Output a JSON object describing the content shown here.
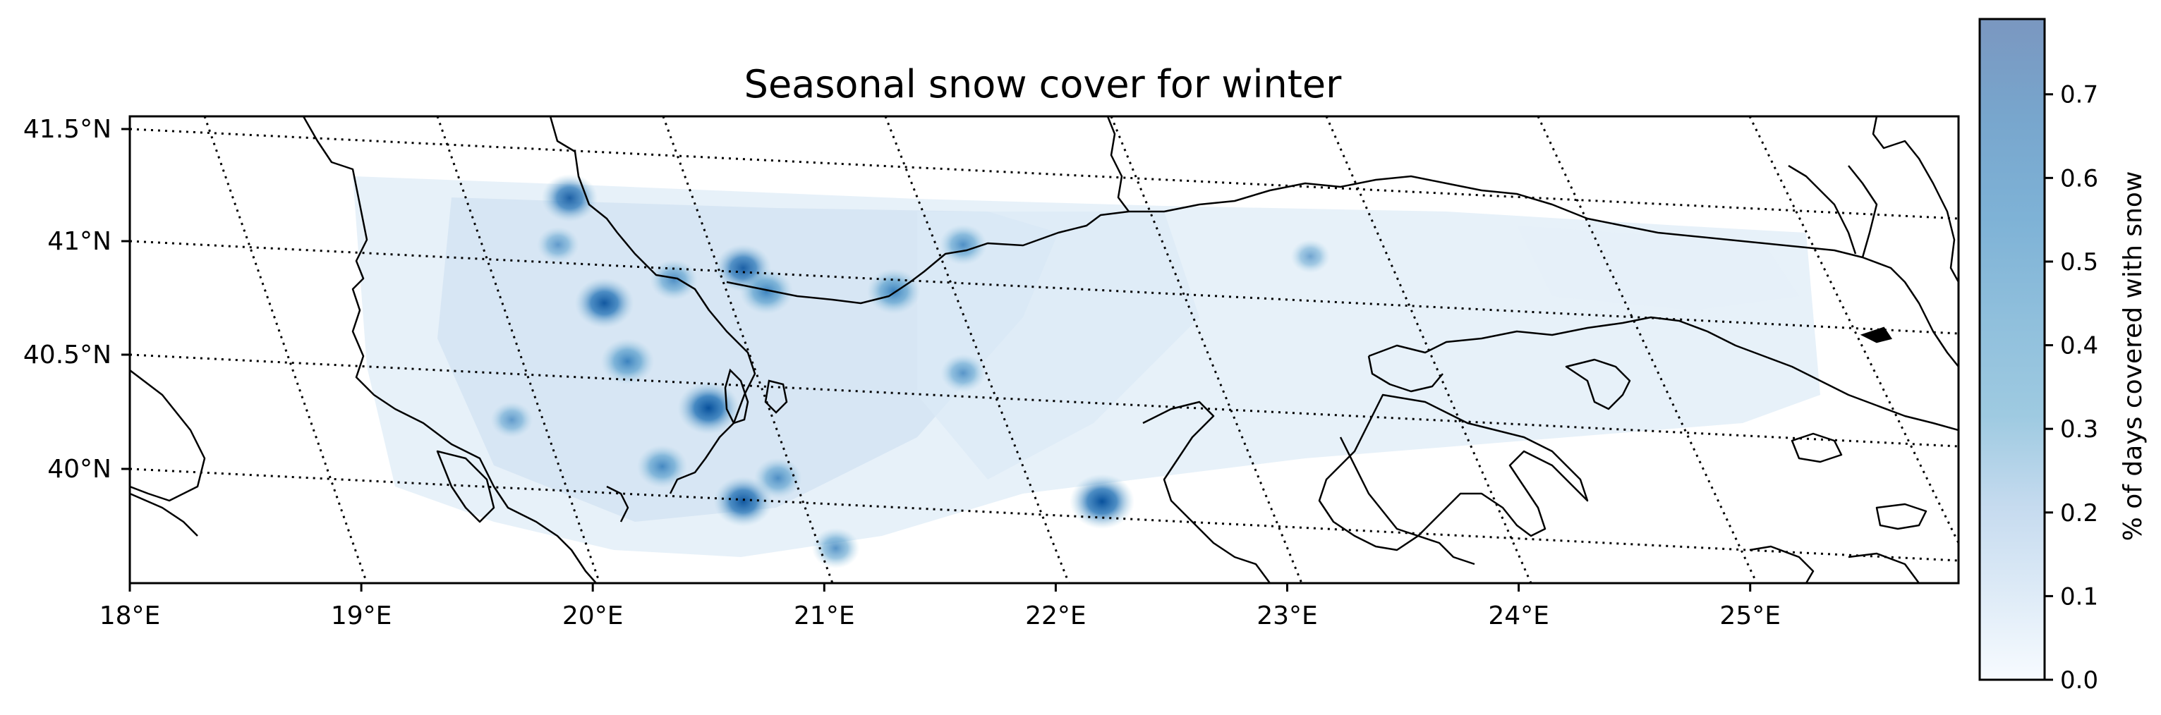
{
  "title": "Seasonal snow cover for winter",
  "colorbar": {
    "label": "% of days covered with snow",
    "ticks": [
      "0.0",
      "0.1",
      "0.2",
      "0.3",
      "0.4",
      "0.5",
      "0.6",
      "0.7"
    ],
    "tick_values": [
      0.0,
      0.1,
      0.2,
      0.3,
      0.4,
      0.5,
      0.6,
      0.7
    ],
    "range": [
      0.0,
      0.79
    ],
    "colormap": [
      "#f7fbff",
      "#deebf7",
      "#c6dbef",
      "#9ecae1",
      "#6baed6",
      "#4292c6",
      "#2171b5",
      "#08519c"
    ]
  },
  "axes": {
    "x_ticks": [
      "18°E",
      "19°E",
      "20°E",
      "21°E",
      "22°E",
      "23°E",
      "24°E",
      "25°E"
    ],
    "x_tick_values": [
      18,
      19,
      20,
      21,
      22,
      23,
      24,
      25
    ],
    "y_ticks": [
      "41.5°N",
      "41°N",
      "40.5°N",
      "40°N"
    ],
    "y_tick_values": [
      41.5,
      41.0,
      40.5,
      40.0
    ],
    "lon_range": [
      18.0,
      25.9
    ],
    "lat_range": [
      39.55,
      41.55
    ],
    "gridlines": "dotted"
  },
  "snow_hotspots": [
    {
      "lon": 19.9,
      "lat": 41.2,
      "value": 0.55
    },
    {
      "lon": 20.05,
      "lat": 40.75,
      "value": 0.6
    },
    {
      "lon": 20.15,
      "lat": 40.5,
      "value": 0.5
    },
    {
      "lon": 20.35,
      "lat": 40.85,
      "value": 0.4
    },
    {
      "lon": 20.5,
      "lat": 40.3,
      "value": 0.65
    },
    {
      "lon": 20.65,
      "lat": 40.9,
      "value": 0.55
    },
    {
      "lon": 20.75,
      "lat": 40.8,
      "value": 0.5
    },
    {
      "lon": 20.65,
      "lat": 39.9,
      "value": 0.6
    },
    {
      "lon": 20.8,
      "lat": 40.0,
      "value": 0.4
    },
    {
      "lon": 21.3,
      "lat": 40.8,
      "value": 0.5
    },
    {
      "lon": 21.6,
      "lat": 41.0,
      "value": 0.4
    },
    {
      "lon": 21.6,
      "lat": 40.45,
      "value": 0.35
    },
    {
      "lon": 21.05,
      "lat": 39.7,
      "value": 0.4
    },
    {
      "lon": 22.2,
      "lat": 39.9,
      "value": 0.7
    },
    {
      "lon": 20.3,
      "lat": 40.05,
      "value": 0.45
    },
    {
      "lon": 19.65,
      "lat": 40.25,
      "value": 0.3
    },
    {
      "lon": 23.1,
      "lat": 40.95,
      "value": 0.25
    },
    {
      "lon": 19.85,
      "lat": 41.0,
      "value": 0.3
    }
  ]
}
